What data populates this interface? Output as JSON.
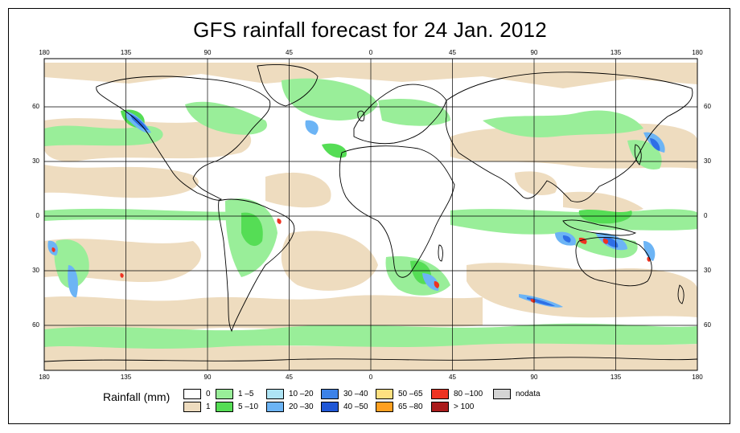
{
  "title": "GFS rainfall forecast for 24 Jan. 2012",
  "axes": {
    "lon_labels": [
      "180",
      "135",
      "90",
      "45",
      "0",
      "45",
      "90",
      "135",
      "180"
    ],
    "lat_labels": [
      "60",
      "30",
      "0",
      "30",
      "60"
    ]
  },
  "colors": {
    "land_outline": "#000000",
    "grid": "#000000",
    "ocean_bg": "#ffffff",
    "light_rain": "#eedcbf",
    "moderate_rain": "#99ee99",
    "bright_green": "#66e066",
    "heavy_blue": "#66a8ff",
    "deep_blue": "#2e6fe6",
    "red": "#ee3322",
    "dark_red": "#aa1c1c"
  },
  "legend": {
    "title": "Rainfall (mm)",
    "items": [
      {
        "label": "0",
        "color": "#ffffff"
      },
      {
        "label": "1",
        "color": "#eedcbf"
      },
      {
        "label": "1 –5",
        "color": "#99ee99"
      },
      {
        "label": "5 –10",
        "color": "#55dd55"
      },
      {
        "label": "10 –20",
        "color": "#aee4f5"
      },
      {
        "label": "20 –30",
        "color": "#6cb4f5"
      },
      {
        "label": "30 –40",
        "color": "#3c82e8"
      },
      {
        "label": "40 –50",
        "color": "#1f57d6"
      },
      {
        "label": "50 –65",
        "color": "#ffe080"
      },
      {
        "label": "65 –80",
        "color": "#ffa020"
      },
      {
        "label": "80 –100",
        "color": "#ee3322"
      },
      {
        "label": "> 100",
        "color": "#aa1c1c"
      },
      {
        "label": "nodata",
        "color": "#d4d4d4"
      }
    ]
  }
}
